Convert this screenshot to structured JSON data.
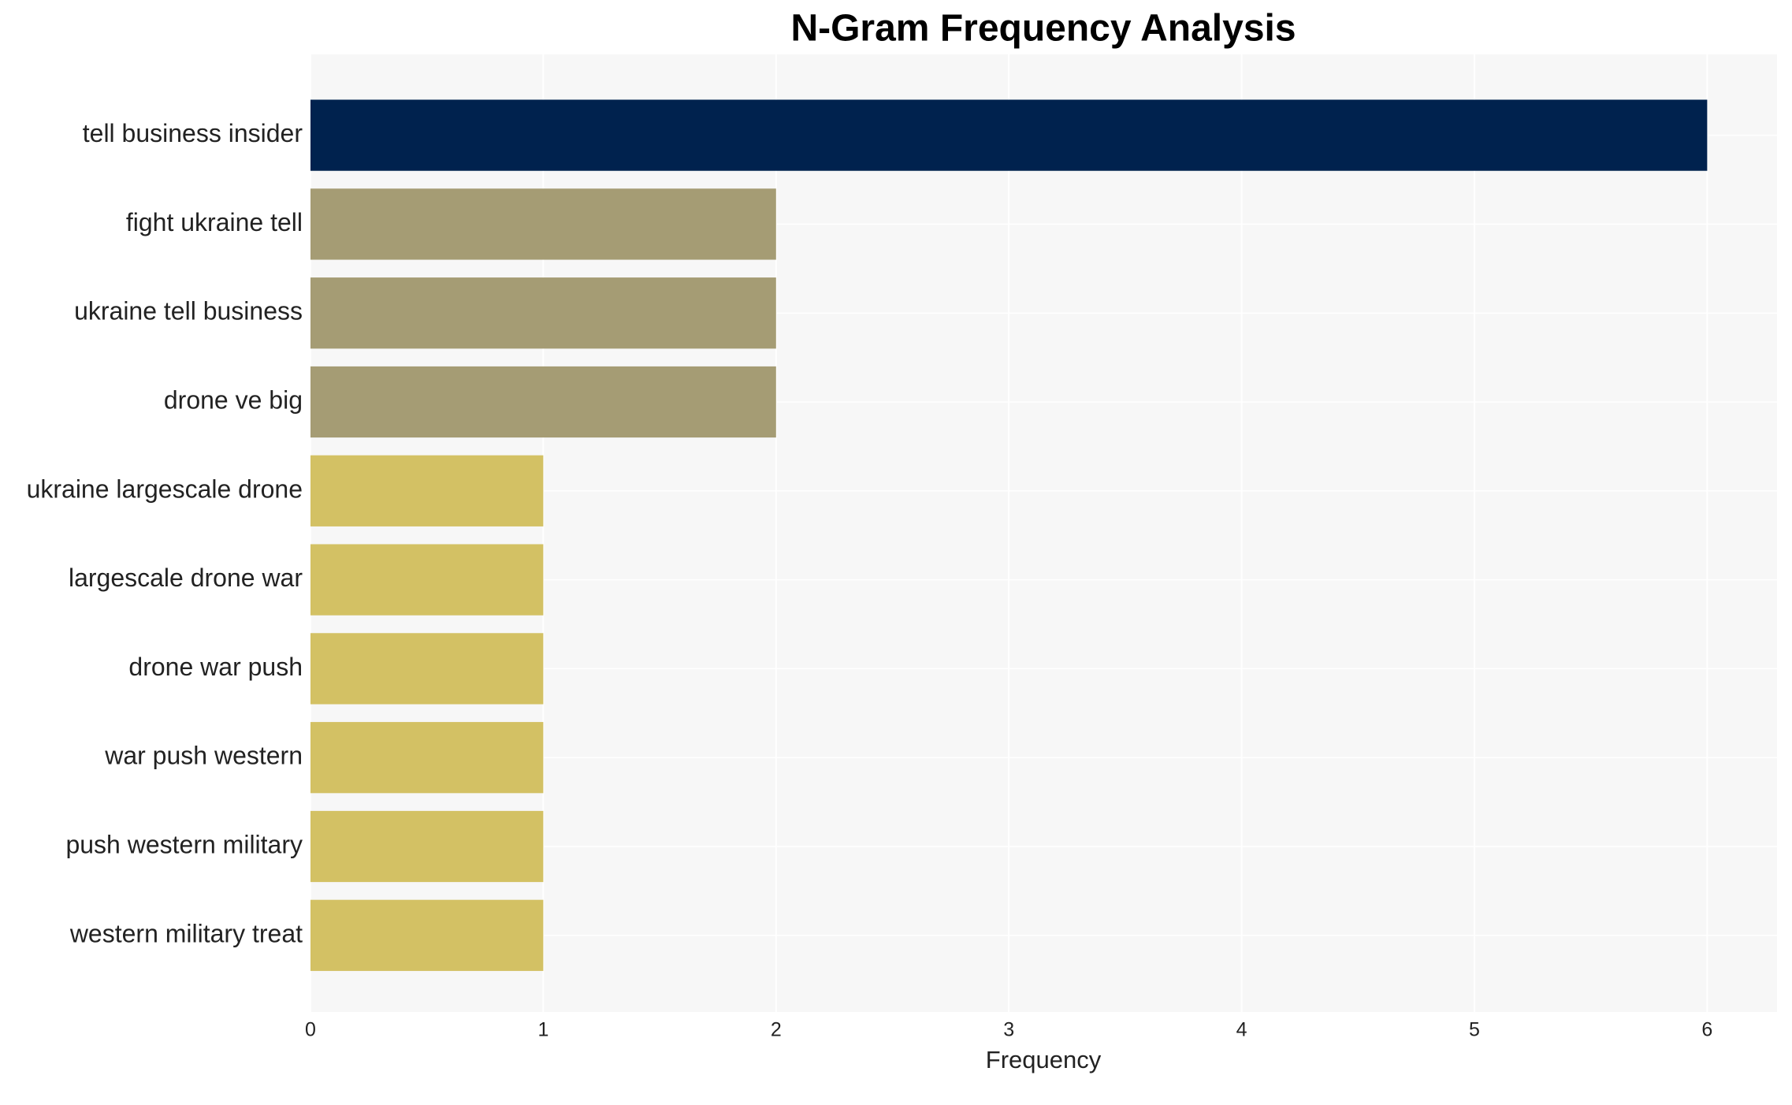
{
  "chart_data": {
    "type": "barh",
    "title": "N-Gram Frequency Analysis",
    "x_label": "Frequency",
    "categories": [
      "tell business insider",
      "fight ukraine tell",
      "ukraine tell business",
      "drone ve big",
      "ukraine largescale drone",
      "largescale drone war",
      "drone war push",
      "war push western",
      "push western military",
      "western military treat"
    ],
    "values": [
      6,
      2,
      2,
      2,
      1,
      1,
      1,
      1,
      1,
      1
    ],
    "colors": [
      "#00224e",
      "#a59c74",
      "#a59c74",
      "#a59c74",
      "#d3c164",
      "#d3c164",
      "#d3c164",
      "#d3c164",
      "#d3c164",
      "#d3c164"
    ],
    "xlim": [
      0,
      6.3
    ],
    "xticks": [
      0,
      1,
      2,
      3,
      4,
      5,
      6
    ],
    "grid": true
  }
}
